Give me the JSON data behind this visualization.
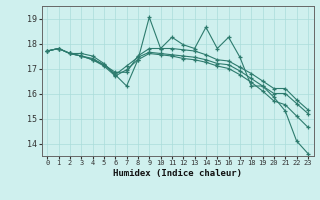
{
  "xlabel": "Humidex (Indice chaleur)",
  "background_color": "#cff0ee",
  "grid_color": "#aaddda",
  "line_color": "#2d7b6e",
  "xlim": [
    -0.5,
    23.5
  ],
  "ylim": [
    13.5,
    19.5
  ],
  "yticks": [
    14,
    15,
    16,
    17,
    18,
    19
  ],
  "xticks": [
    0,
    1,
    2,
    3,
    4,
    5,
    6,
    7,
    8,
    9,
    10,
    11,
    12,
    13,
    14,
    15,
    16,
    17,
    18,
    19,
    20,
    21,
    22,
    23
  ],
  "series": [
    [
      17.7,
      17.8,
      17.6,
      17.6,
      17.5,
      17.2,
      16.75,
      16.3,
      17.35,
      19.05,
      17.8,
      18.25,
      17.95,
      17.8,
      18.65,
      17.8,
      18.25,
      17.45,
      16.3,
      16.3,
      15.85,
      15.3,
      14.1,
      13.6
    ],
    [
      17.7,
      17.8,
      17.6,
      17.5,
      17.4,
      17.15,
      16.85,
      16.85,
      17.5,
      17.8,
      17.8,
      17.8,
      17.75,
      17.7,
      17.55,
      17.35,
      17.3,
      17.05,
      16.8,
      16.5,
      16.2,
      16.2,
      15.75,
      15.35
    ],
    [
      17.7,
      17.8,
      17.6,
      17.5,
      17.35,
      17.15,
      16.75,
      17.1,
      17.45,
      17.65,
      17.6,
      17.55,
      17.5,
      17.45,
      17.35,
      17.2,
      17.15,
      16.9,
      16.6,
      16.3,
      16.0,
      16.0,
      15.6,
      15.2
    ],
    [
      17.7,
      17.8,
      17.6,
      17.5,
      17.35,
      17.1,
      16.7,
      16.95,
      17.35,
      17.6,
      17.55,
      17.5,
      17.4,
      17.35,
      17.25,
      17.1,
      17.0,
      16.75,
      16.45,
      16.1,
      15.7,
      15.55,
      15.1,
      14.65
    ]
  ]
}
